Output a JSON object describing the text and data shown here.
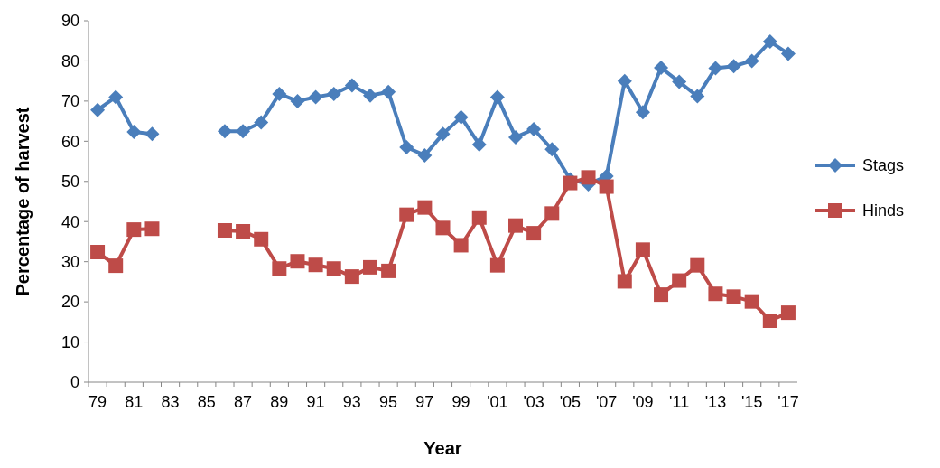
{
  "chart_data": {
    "type": "line",
    "xlabel": "Year",
    "ylabel": "Percentage of harvest",
    "categories": [
      "79",
      null,
      "81",
      null,
      "83",
      null,
      "85",
      null,
      "87",
      null,
      "89",
      null,
      "91",
      null,
      "93",
      null,
      "95",
      null,
      "97",
      null,
      "99",
      null,
      "'01",
      null,
      "'03",
      null,
      "'05",
      null,
      "'07",
      null,
      "'09",
      null,
      "'11",
      null,
      "'13",
      null,
      "'15",
      null,
      "'17"
    ],
    "ylim": [
      0,
      90
    ],
    "yticks": [
      0,
      10,
      20,
      30,
      40,
      50,
      60,
      70,
      80,
      90
    ],
    "grid": false,
    "legend": "right",
    "series": [
      {
        "name": "Stags",
        "color": "#4a7ebb",
        "marker": "diamond",
        "values": [
          67.8,
          71,
          62.3,
          61.8,
          null,
          null,
          null,
          62.5,
          62.5,
          64.7,
          71.8,
          70,
          71,
          71.8,
          73.9,
          71.4,
          72.3,
          58.5,
          56.5,
          61.8,
          66,
          59.2,
          71,
          61,
          63,
          58,
          50.5,
          49.3,
          51.3,
          75,
          67.2,
          78.3,
          74.8,
          71.2,
          78.2,
          78.7,
          80,
          84.8,
          81.8
        ]
      },
      {
        "name": "Hinds",
        "color": "#be4b48",
        "marker": "square",
        "values": [
          32.4,
          29,
          38,
          38.2,
          null,
          null,
          null,
          37.8,
          37.6,
          35.6,
          28.3,
          30.1,
          29.2,
          28.3,
          26.3,
          28.6,
          27.7,
          41.7,
          43.5,
          38.4,
          34.1,
          41,
          29.1,
          39,
          37.1,
          42,
          49.6,
          51,
          48.7,
          25.1,
          33,
          21.8,
          25.3,
          29.1,
          22,
          21.3,
          20.1,
          15.3,
          17.3
        ]
      }
    ]
  }
}
